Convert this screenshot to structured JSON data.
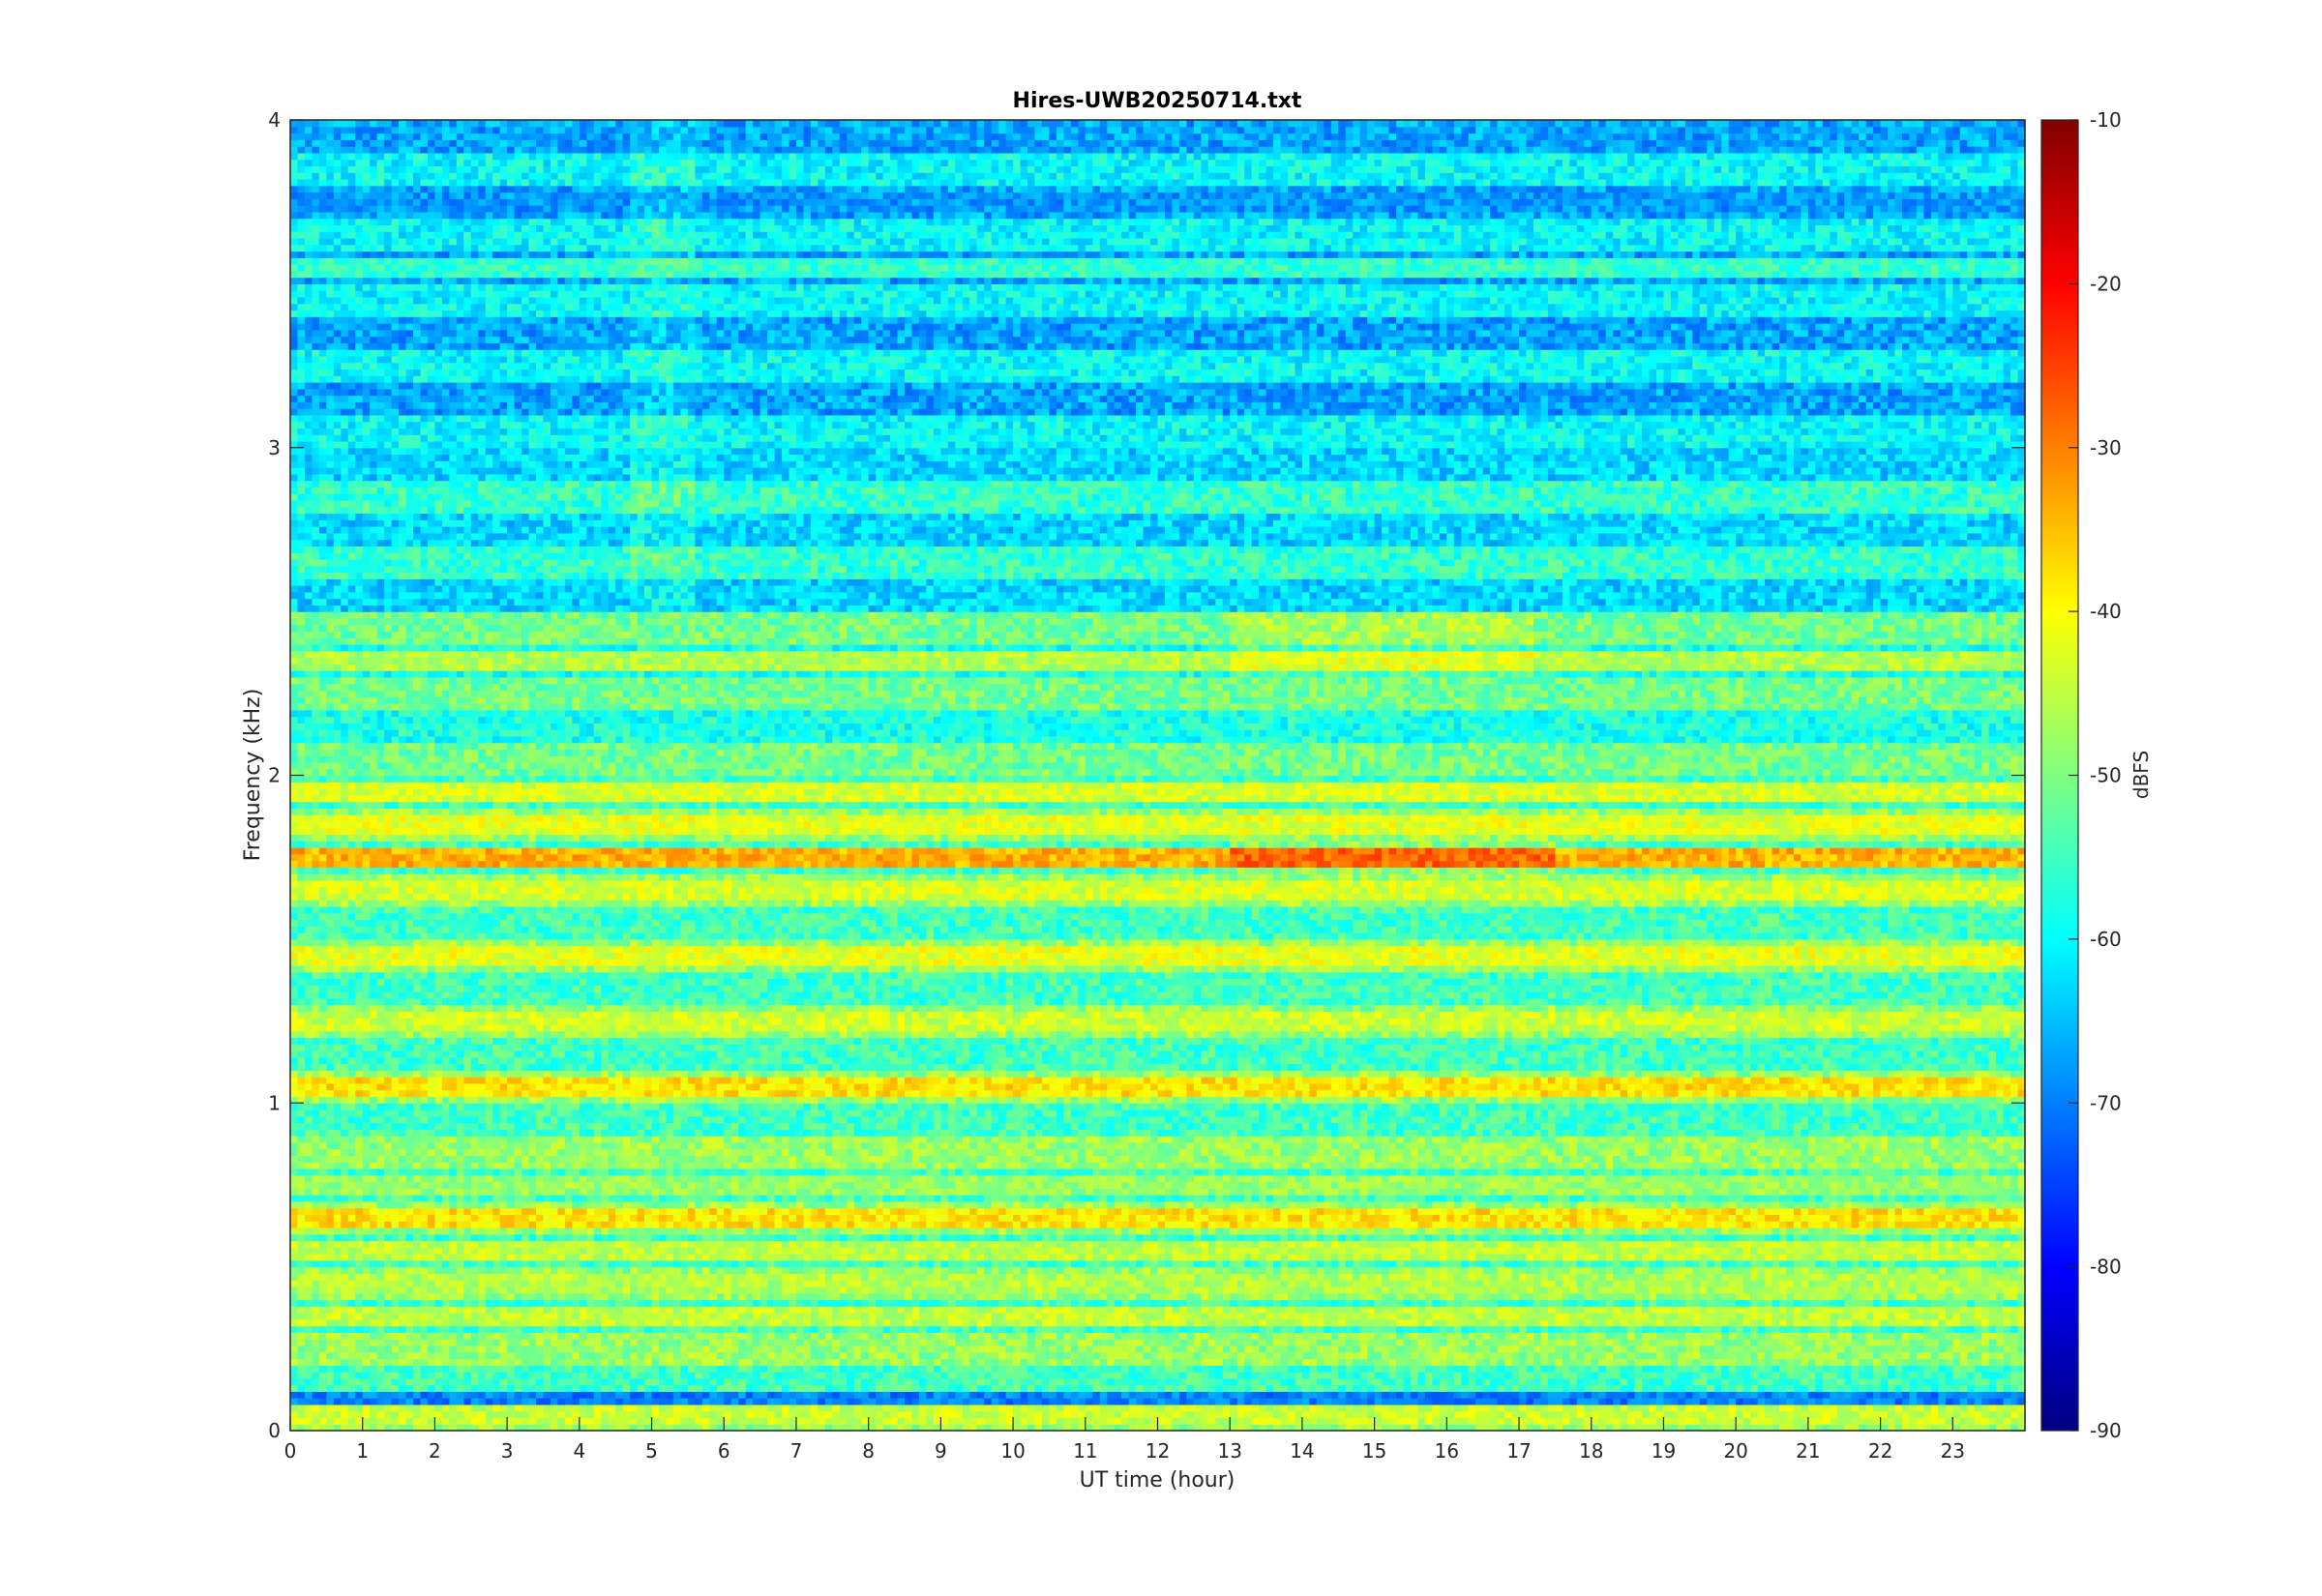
{
  "chart_data": {
    "type": "heatmap",
    "title": "Hires-UWB20250714.txt",
    "xlabel": "UT time (hour)",
    "ylabel": "Frequency (kHz)",
    "colorbar_label": "dBFS",
    "xlim": [
      0,
      24
    ],
    "ylim": [
      0,
      4
    ],
    "clim": [
      -90,
      -10
    ],
    "colormap": "jet",
    "x_ticks": [
      "0",
      "1",
      "2",
      "3",
      "4",
      "5",
      "6",
      "7",
      "8",
      "9",
      "10",
      "11",
      "12",
      "13",
      "14",
      "15",
      "16",
      "17",
      "18",
      "19",
      "20",
      "21",
      "22",
      "23"
    ],
    "y_ticks": [
      "0",
      "1",
      "2",
      "3",
      "4"
    ],
    "colorbar_ticks": [
      "-10",
      "-20",
      "-30",
      "-40",
      "-50",
      "-60",
      "-70",
      "-80",
      "-90"
    ],
    "grid": false,
    "bands_khz_dbfs": [
      {
        "freq_khz": 0.05,
        "level_dbfs": -44
      },
      {
        "freq_khz": 0.1,
        "level_dbfs": -70
      },
      {
        "freq_khz": 0.35,
        "level_dbfs": -45
      },
      {
        "freq_khz": 0.45,
        "level_dbfs": -46
      },
      {
        "freq_khz": 0.55,
        "level_dbfs": -45
      },
      {
        "freq_khz": 0.65,
        "level_dbfs": -38
      },
      {
        "freq_khz": 0.75,
        "level_dbfs": -48
      },
      {
        "freq_khz": 1.05,
        "level_dbfs": -38
      },
      {
        "freq_khz": 1.25,
        "level_dbfs": -44
      },
      {
        "freq_khz": 1.45,
        "level_dbfs": -42
      },
      {
        "freq_khz": 1.65,
        "level_dbfs": -43
      },
      {
        "freq_khz": 1.75,
        "level_dbfs": -34
      },
      {
        "freq_khz": 1.85,
        "level_dbfs": -42
      },
      {
        "freq_khz": 1.95,
        "level_dbfs": -43
      },
      {
        "freq_khz": 2.35,
        "level_dbfs": -46
      },
      {
        "freq_khz": 3.55,
        "level_dbfs": -56
      },
      {
        "freq_khz": 3.75,
        "level_dbfs": -68
      }
    ]
  }
}
